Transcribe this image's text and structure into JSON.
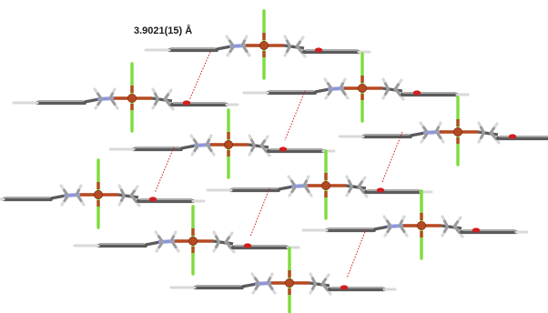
{
  "figure": {
    "distance_label": "3.9021(15) Å"
  },
  "colors": {
    "carbon_dark": "#5b5b5b",
    "carbon_light": "#a9a9a9",
    "hydrogen": "#d9d9d9",
    "nitrogen": "#8c95e0",
    "oxygen": "#d21e1e",
    "metal": "#b54a22",
    "halogen": "#7ddc3c",
    "contact_line": "#d42020"
  }
}
